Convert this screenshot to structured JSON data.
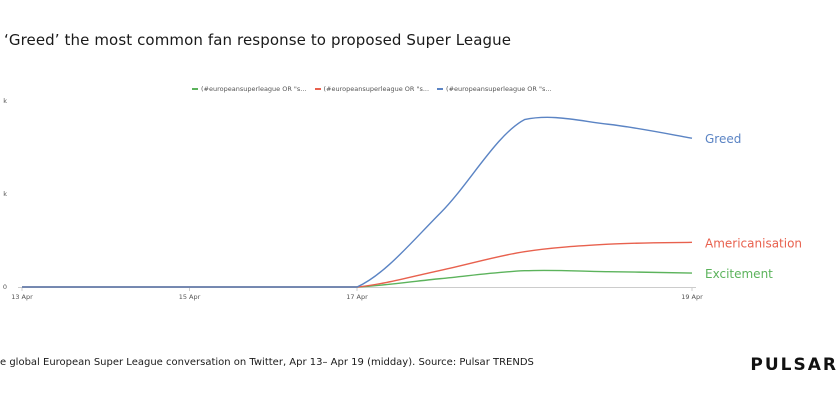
{
  "title": "‘Greed’ the most common fan response to proposed Super League",
  "footer": "e  global European Super League conversation on Twitter, Apr 13– Apr 19 (midday). Source: Pulsar TRENDS",
  "logo": "PULSAR",
  "colors": {
    "greed": "#5b84c4",
    "americanisation": "#e8614e",
    "excitement": "#5cb35c",
    "axis": "#cccccc",
    "tick": "#555555"
  },
  "chart_data": {
    "type": "line",
    "x": [
      "13 Apr",
      "14 Apr",
      "15 Apr",
      "16 Apr",
      "17 Apr",
      "17.5 Apr",
      "18 Apr",
      "18.5 Apr",
      "19 Apr"
    ],
    "x_ticks": [
      "13 Apr",
      "15 Apr",
      "17 Apr",
      "19 Apr"
    ],
    "y_ticks": [
      "0",
      "k",
      "k"
    ],
    "ylim": [
      0,
      20000
    ],
    "legend": [
      "(#europeansuperleague OR \"s...",
      "(#europeansuperleague OR \"s...",
      "(#europeansuperleague OR \"s..."
    ],
    "legend_position": "top",
    "grid": false,
    "series": [
      {
        "name": "Greed",
        "color": "#5b84c4",
        "values": [
          0,
          0,
          0,
          0,
          0,
          8000,
          18000,
          17500,
          16000
        ]
      },
      {
        "name": "Americanisation",
        "color": "#e8614e",
        "values": [
          0,
          0,
          0,
          0,
          0,
          1800,
          3800,
          4600,
          4800
        ]
      },
      {
        "name": "Excitement",
        "color": "#5cb35c",
        "values": [
          0,
          0,
          0,
          0,
          0,
          900,
          1750,
          1650,
          1500
        ]
      }
    ]
  }
}
